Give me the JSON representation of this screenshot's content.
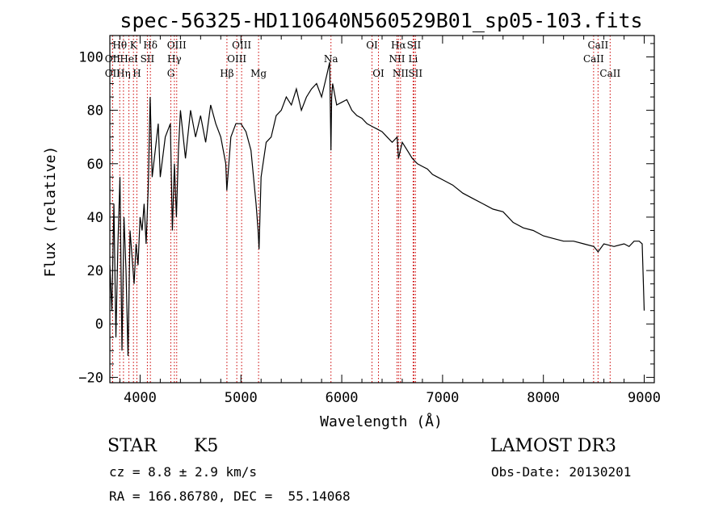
{
  "chart_data": {
    "type": "line",
    "title": "spec-56325-HD110640N560529B01_sp05-103.fits",
    "xlabel": "Wavelength (Å)",
    "ylabel": "Flux (relative)",
    "xlim": [
      3700,
      9100
    ],
    "ylim": [
      -22,
      108
    ],
    "xticks": [
      4000,
      5000,
      6000,
      7000,
      8000,
      9000
    ],
    "xtick_labels": [
      "4000",
      "5000",
      "6000",
      "7000",
      "8000",
      "9000"
    ],
    "yticks": [
      -20,
      0,
      20,
      40,
      60,
      80,
      100
    ],
    "ytick_labels": [
      "−20",
      "0",
      "20",
      "40",
      "60",
      "80",
      "100"
    ],
    "series": [
      {
        "name": "flux",
        "x": [
          3700,
          3720,
          3740,
          3760,
          3780,
          3800,
          3820,
          3840,
          3860,
          3880,
          3900,
          3920,
          3940,
          3960,
          3980,
          4000,
          4020,
          4040,
          4060,
          4080,
          4100,
          4120,
          4150,
          4180,
          4200,
          4250,
          4300,
          4320,
          4340,
          4360,
          4380,
          4400,
          4450,
          4500,
          4550,
          4600,
          4650,
          4700,
          4750,
          4800,
          4850,
          4860,
          4900,
          4950,
          5000,
          5050,
          5100,
          5150,
          5170,
          5180,
          5200,
          5250,
          5300,
          5350,
          5400,
          5450,
          5500,
          5550,
          5600,
          5650,
          5700,
          5750,
          5800,
          5850,
          5880,
          5893,
          5900,
          5910,
          5950,
          6000,
          6050,
          6100,
          6150,
          6200,
          6250,
          6300,
          6350,
          6400,
          6450,
          6500,
          6550,
          6563,
          6600,
          6650,
          6700,
          6750,
          6800,
          6850,
          6900,
          6950,
          7000,
          7100,
          7200,
          7300,
          7400,
          7500,
          7600,
          7700,
          7800,
          7900,
          8000,
          8100,
          8200,
          8300,
          8400,
          8500,
          8542,
          8600,
          8700,
          8800,
          8850,
          8900,
          8950,
          8980,
          9000
        ],
        "y": [
          22,
          5,
          45,
          -5,
          30,
          55,
          -10,
          40,
          20,
          -12,
          35,
          25,
          15,
          30,
          22,
          40,
          35,
          45,
          30,
          50,
          85,
          55,
          65,
          75,
          55,
          70,
          75,
          35,
          60,
          40,
          65,
          80,
          62,
          80,
          70,
          78,
          68,
          82,
          75,
          70,
          60,
          50,
          70,
          75,
          75,
          72,
          65,
          45,
          35,
          28,
          55,
          68,
          70,
          78,
          80,
          85,
          82,
          88,
          80,
          85,
          88,
          90,
          85,
          93,
          98,
          65,
          85,
          90,
          82,
          83,
          84,
          80,
          78,
          77,
          75,
          74,
          73,
          72,
          70,
          68,
          70,
          62,
          68,
          65,
          62,
          60,
          59,
          58,
          56,
          55,
          54,
          52,
          49,
          47,
          45,
          43,
          42,
          38,
          36,
          35,
          33,
          32,
          31,
          31,
          30,
          29,
          27,
          30,
          29,
          30,
          29,
          31,
          31,
          30,
          5
        ]
      }
    ],
    "spectral_lines": [
      {
        "label": "Hθ",
        "x": 3798,
        "row": 0
      },
      {
        "label": "OII",
        "x": 3727,
        "row": 1
      },
      {
        "label": "OII",
        "x": 3727,
        "row": 2
      },
      {
        "label": "Hη",
        "x": 3835,
        "row": 2
      },
      {
        "label": "HeI",
        "x": 3889,
        "row": 1
      },
      {
        "label": "K",
        "x": 3934,
        "row": 0
      },
      {
        "label": "H",
        "x": 3968,
        "row": 2
      },
      {
        "label": "SII",
        "x": 4072,
        "row": 1
      },
      {
        "label": "Hδ",
        "x": 4102,
        "row": 0
      },
      {
        "label": "OIII",
        "x": 4363,
        "row": 0
      },
      {
        "label": "Hγ",
        "x": 4340,
        "row": 1
      },
      {
        "label": "G",
        "x": 4305,
        "row": 2
      },
      {
        "label": "Hβ",
        "x": 4861,
        "row": 2
      },
      {
        "label": "OIII",
        "x": 4959,
        "row": 1
      },
      {
        "label": "OIII",
        "x": 5007,
        "row": 0
      },
      {
        "label": "Mg",
        "x": 5175,
        "row": 2
      },
      {
        "label": "Na",
        "x": 5893,
        "row": 1
      },
      {
        "label": "OI",
        "x": 6300,
        "row": 0
      },
      {
        "label": "OI",
        "x": 6364,
        "row": 2
      },
      {
        "label": "Hα",
        "x": 6563,
        "row": 0
      },
      {
        "label": "NII",
        "x": 6548,
        "row": 1
      },
      {
        "label": "NII",
        "x": 6583,
        "row": 2
      },
      {
        "label": "Li",
        "x": 6708,
        "row": 1
      },
      {
        "label": "SII",
        "x": 6716,
        "row": 0
      },
      {
        "label": "SII",
        "x": 6731,
        "row": 2
      },
      {
        "label": "CaII",
        "x": 8498,
        "row": 1
      },
      {
        "label": "CaII",
        "x": 8542,
        "row": 0
      },
      {
        "label": "CaII",
        "x": 8662,
        "row": 2
      }
    ]
  },
  "info": {
    "object_type": "STAR",
    "subclass": "K5",
    "survey": "LAMOST DR3",
    "cz": "cz = 8.8 ± 2.9 km/s",
    "obs_date": "Obs-Date: 20130201",
    "coords": "RA = 166.86780, DEC =  55.14068"
  }
}
